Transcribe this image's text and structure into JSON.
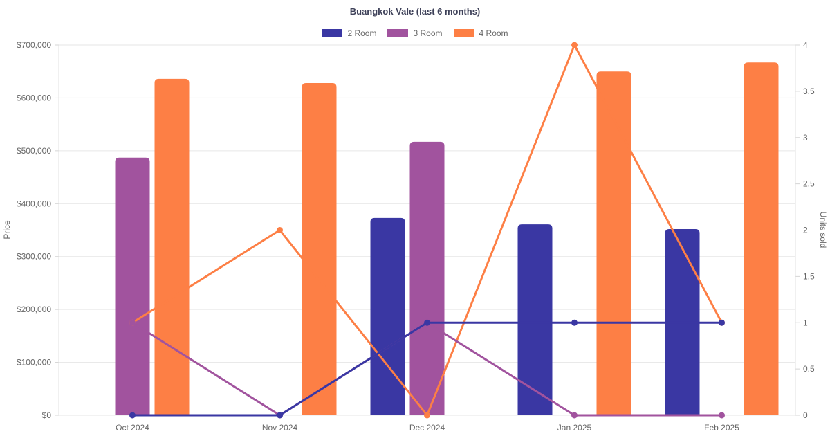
{
  "chart_data": {
    "type": "combo-bar-line",
    "title": "Buangkok Vale (last 6 months)",
    "categories": [
      "Oct 2024",
      "Nov 2024",
      "Dec 2024",
      "Jan 2025",
      "Feb 2025"
    ],
    "left_axis": {
      "title": "Price",
      "min": 0,
      "max": 700000,
      "tick_step": 100000,
      "tick_labels": [
        "$0",
        "$100,000",
        "$200,000",
        "$300,000",
        "$400,000",
        "$500,000",
        "$600,000",
        "$700,000"
      ]
    },
    "right_axis": {
      "title": "Units sold",
      "min": 0,
      "max": 4,
      "tick_step": 0.5,
      "tick_labels": [
        "0",
        "0.5",
        "1",
        "1.5",
        "2",
        "2.5",
        "3",
        "3.5",
        "4"
      ]
    },
    "legend": {
      "position": "top",
      "items": [
        "2 Room",
        "3 Room",
        "4 Room"
      ]
    },
    "grid": {
      "horizontal": true,
      "vertical": false
    },
    "series": [
      {
        "name": "2 Room",
        "color": "#3a37a3",
        "bar_axis": "left",
        "bar_values_price": [
          null,
          null,
          373000,
          361000,
          352000
        ],
        "line_axis": "right",
        "line_values_units": [
          0,
          0,
          1,
          1,
          1
        ]
      },
      {
        "name": "3 Room",
        "color": "#a1539e",
        "bar_axis": "left",
        "bar_values_price": [
          487000,
          null,
          517000,
          null,
          null
        ],
        "line_axis": "right",
        "line_values_units": [
          1,
          0,
          1,
          0,
          0
        ]
      },
      {
        "name": "4 Room",
        "color": "#fd7f45",
        "bar_axis": "left",
        "bar_values_price": [
          636000,
          628000,
          null,
          650000,
          667000
        ],
        "line_axis": "right",
        "line_values_units": [
          1,
          2,
          0,
          4,
          1
        ]
      }
    ]
  },
  "colors": {
    "background": "#ffffff",
    "title_text": "#3e4159",
    "axis_text": "#666666",
    "grid_line": "#e6e6e6",
    "axis_border": "#e0e0e0",
    "tick_mark": "#d4d4d4"
  }
}
